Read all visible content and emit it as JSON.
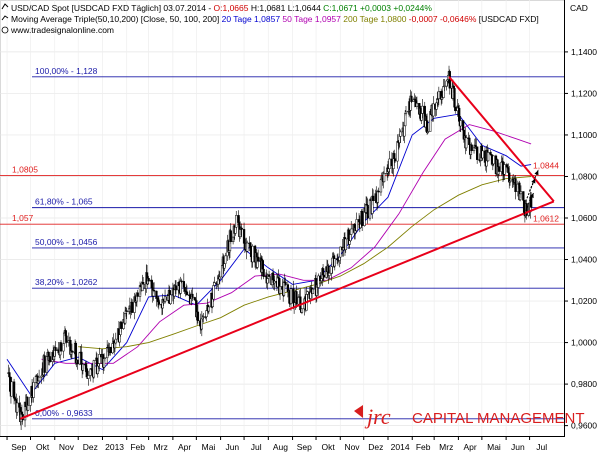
{
  "header": {
    "line1": [
      {
        "text": "USD/CAD Spot [USDCAD FXD  Täglich] 03.07.2014 - ",
        "color": "#000000"
      },
      {
        "text": "O:1,0665",
        "color": "#d00000"
      },
      {
        "text": " H:1,0681 L:1,0644 ",
        "color": "#000000"
      },
      {
        "text": "C:1,0671 +0,0003 +0,0244%",
        "color": "#008000"
      }
    ],
    "line2": [
      {
        "text": "Moving Average Triple(50,10,200) [Close, 50, 100, 200] ",
        "color": "#000000"
      },
      {
        "text": "20 Tage 1,0857",
        "color": "#0000d0"
      },
      {
        "text": " 50 Tage 1,0957",
        "color": "#b000b0"
      },
      {
        "text": " 200 Tage 1,0800",
        "color": "#808000"
      },
      {
        "text": " -0,0007 -0,0646%",
        "color": "#d00000"
      },
      {
        "text": " [USDCAD FXD]",
        "color": "#000000"
      }
    ],
    "line3": "www.tradesignalonline.com"
  },
  "currency_label": "CAD",
  "brand": {
    "mark": "jrc",
    "name": "CAPITAL MANAGEMENT",
    "color": "#d81e1e"
  },
  "chart_data": {
    "type": "candlestick",
    "instrument": "USD/CAD",
    "ylim": [
      0.955,
      1.165
    ],
    "y_ticks": [
      "1,1400",
      "1,1200",
      "1,1000",
      "1,0800",
      "1,0600",
      "1,0400",
      "1,0200",
      "1,0000",
      "0,9800",
      "0,9600"
    ],
    "y_tick_values": [
      1.14,
      1.12,
      1.1,
      1.08,
      1.06,
      1.04,
      1.02,
      1.0,
      0.98,
      0.96
    ],
    "x_labels": [
      "Sep",
      "Okt",
      "Nov",
      "Dez",
      "2013",
      "Feb",
      "Mrz",
      "Apr",
      "Mai",
      "Jun",
      "Jul",
      "Aug",
      "Sep",
      "Okt",
      "Nov",
      "Dez",
      "2014",
      "Feb",
      "Mrz",
      "Apr",
      "Mai",
      "Jun",
      "Jul"
    ],
    "fib_levels": [
      {
        "label": "100,00% - 1,128",
        "value": 1.128
      },
      {
        "label": "61,80% - 1,065",
        "value": 1.065
      },
      {
        "label": "50,00% - 1,0456",
        "value": 1.0456
      },
      {
        "label": "38,20% - 1,0262",
        "value": 1.0262
      },
      {
        "label": "0,00% - 0,9633",
        "value": 0.9633
      }
    ],
    "red_levels": [
      {
        "label": "1,0805",
        "value": 1.0805
      },
      {
        "label": "1,057",
        "value": 1.057
      }
    ],
    "annotations": [
      {
        "label": "1,0844",
        "value": 1.0844
      },
      {
        "label": "1,0612",
        "value": 1.0612
      }
    ],
    "anchors": [
      [
        "2012-09-01",
        0.985
      ],
      [
        "2012-09-18",
        0.9633
      ],
      [
        "2012-10-15",
        0.988
      ],
      [
        "2012-11-15",
        1.002
      ],
      [
        "2012-12-15",
        0.985
      ],
      [
        "2013-01-10",
        0.995
      ],
      [
        "2013-02-25",
        1.03
      ],
      [
        "2013-03-20",
        1.02
      ],
      [
        "2013-04-15",
        1.028
      ],
      [
        "2013-05-10",
        1.008
      ],
      [
        "2013-06-20",
        1.058
      ],
      [
        "2013-07-15",
        1.04
      ],
      [
        "2013-08-10",
        1.028
      ],
      [
        "2013-09-15",
        1.018
      ],
      [
        "2013-10-20",
        1.038
      ],
      [
        "2013-11-15",
        1.052
      ],
      [
        "2013-12-15",
        1.068
      ],
      [
        "2014-01-15",
        1.095
      ],
      [
        "2014-02-01",
        1.12
      ],
      [
        "2014-02-20",
        1.105
      ],
      [
        "2014-03-20",
        1.128
      ],
      [
        "2014-04-10",
        1.095
      ],
      [
        "2014-05-01",
        1.09
      ],
      [
        "2014-05-20",
        1.085
      ],
      [
        "2014-06-10",
        1.08
      ],
      [
        "2014-06-25",
        1.064
      ],
      [
        "2014-07-03",
        1.0671
      ]
    ],
    "ma": [
      {
        "name": "20 Tage",
        "color": "#0000d0",
        "points": [
          [
            "2012-09-01",
            0.992
          ],
          [
            "2012-10-01",
            0.975
          ],
          [
            "2012-11-01",
            0.99
          ],
          [
            "2012-12-01",
            0.993
          ],
          [
            "2013-01-01",
            0.987
          ],
          [
            "2013-02-01",
            1.0
          ],
          [
            "2013-03-01",
            1.022
          ],
          [
            "2013-04-01",
            1.023
          ],
          [
            "2013-05-01",
            1.018
          ],
          [
            "2013-06-01",
            1.03
          ],
          [
            "2013-07-01",
            1.045
          ],
          [
            "2013-08-01",
            1.036
          ],
          [
            "2013-09-01",
            1.028
          ],
          [
            "2013-10-01",
            1.03
          ],
          [
            "2013-11-01",
            1.042
          ],
          [
            "2013-12-01",
            1.058
          ],
          [
            "2014-01-01",
            1.07
          ],
          [
            "2014-02-01",
            1.1
          ],
          [
            "2014-03-01",
            1.108
          ],
          [
            "2014-04-01",
            1.11
          ],
          [
            "2014-05-01",
            1.095
          ],
          [
            "2014-06-01",
            1.09
          ],
          [
            "2014-06-20",
            1.085
          ],
          [
            "2014-07-03",
            1.0857
          ]
        ]
      },
      {
        "name": "50 Tage",
        "color": "#b000b0",
        "points": [
          [
            "2012-10-15",
            0.992
          ],
          [
            "2012-11-15",
            0.99
          ],
          [
            "2012-12-15",
            0.99
          ],
          [
            "2013-01-15",
            0.99
          ],
          [
            "2013-02-15",
            0.998
          ],
          [
            "2013-03-15",
            1.01
          ],
          [
            "2013-04-15",
            1.018
          ],
          [
            "2013-05-15",
            1.019
          ],
          [
            "2013-06-15",
            1.024
          ],
          [
            "2013-07-15",
            1.032
          ],
          [
            "2013-08-15",
            1.033
          ],
          [
            "2013-09-15",
            1.03
          ],
          [
            "2013-10-15",
            1.03
          ],
          [
            "2013-11-15",
            1.036
          ],
          [
            "2013-12-15",
            1.046
          ],
          [
            "2014-01-15",
            1.062
          ],
          [
            "2014-02-15",
            1.082
          ],
          [
            "2014-03-15",
            1.098
          ],
          [
            "2014-04-15",
            1.105
          ],
          [
            "2014-05-15",
            1.102
          ],
          [
            "2014-06-15",
            1.098
          ],
          [
            "2014-07-03",
            1.0957
          ]
        ]
      },
      {
        "name": "200 Tage",
        "color": "#808000",
        "points": [
          [
            "2012-12-01",
            0.998
          ],
          [
            "2013-01-01",
            0.997
          ],
          [
            "2013-02-01",
            0.998
          ],
          [
            "2013-03-01",
            1.0
          ],
          [
            "2013-04-01",
            1.004
          ],
          [
            "2013-05-01",
            1.008
          ],
          [
            "2013-06-01",
            1.012
          ],
          [
            "2013-07-01",
            1.018
          ],
          [
            "2013-08-01",
            1.022
          ],
          [
            "2013-09-01",
            1.025
          ],
          [
            "2013-10-01",
            1.028
          ],
          [
            "2013-11-01",
            1.032
          ],
          [
            "2013-12-01",
            1.038
          ],
          [
            "2014-01-01",
            1.046
          ],
          [
            "2014-02-01",
            1.056
          ],
          [
            "2014-03-01",
            1.064
          ],
          [
            "2014-04-01",
            1.071
          ],
          [
            "2014-05-01",
            1.076
          ],
          [
            "2014-06-01",
            1.079
          ],
          [
            "2014-07-03",
            1.08
          ]
        ]
      }
    ],
    "trendlines": [
      {
        "from": [
          "2012-09-18",
          0.9633
        ],
        "to": [
          "2014-08-01",
          1.068
        ]
      },
      {
        "from": [
          "2014-03-20",
          1.128
        ],
        "to": [
          "2014-08-01",
          1.068
        ]
      }
    ],
    "arrows": [
      {
        "from": [
          "2014-06-24",
          1.062
        ],
        "to": [
          "2014-07-06",
          1.072
        ]
      },
      {
        "from": [
          "2014-06-26",
          1.068
        ],
        "to": [
          "2014-07-08",
          1.079
        ]
      },
      {
        "from": [
          "2014-07-01",
          1.073
        ],
        "to": [
          "2014-07-12",
          1.083
        ]
      }
    ]
  }
}
